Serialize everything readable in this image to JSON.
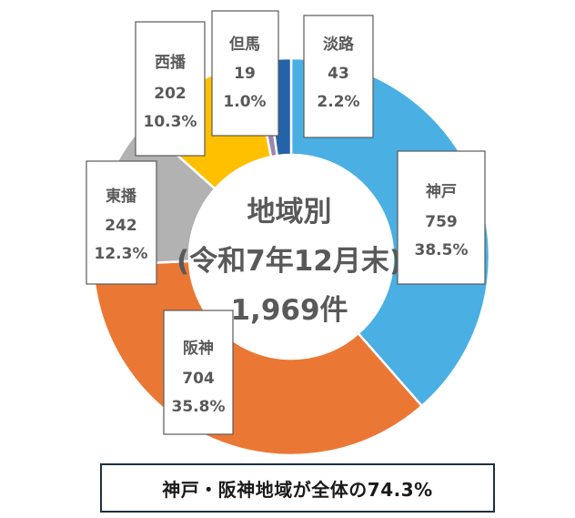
{
  "chart_data": {
    "type": "pie",
    "style": "donut",
    "center_title": {
      "line1": "地域別",
      "line2": "(令和7年12月末)",
      "line3": "1,969件"
    },
    "slices": [
      {
        "name": "神戸",
        "value": "759",
        "percent": "38.5%",
        "value_num": 759,
        "color": "#4aafe3"
      },
      {
        "name": "阪神",
        "value": "704",
        "percent": "35.8%",
        "value_num": 704,
        "color": "#eb7735"
      },
      {
        "name": "東播",
        "value": "242",
        "percent": "12.3%",
        "value_num": 242,
        "color": "#b2b2b2"
      },
      {
        "name": "西播",
        "value": "202",
        "percent": "10.3%",
        "value_num": 202,
        "color": "#ffc000"
      },
      {
        "name": "但馬",
        "value": "19",
        "percent": "1.0%",
        "value_num": 19,
        "color": "#9c86b0"
      },
      {
        "name": "淡路",
        "value": "43",
        "percent": "2.2%",
        "value_num": 43,
        "color": "#2563a8"
      }
    ]
  },
  "summary": {
    "text": "神戸・阪神地域が全体の74.3%"
  }
}
